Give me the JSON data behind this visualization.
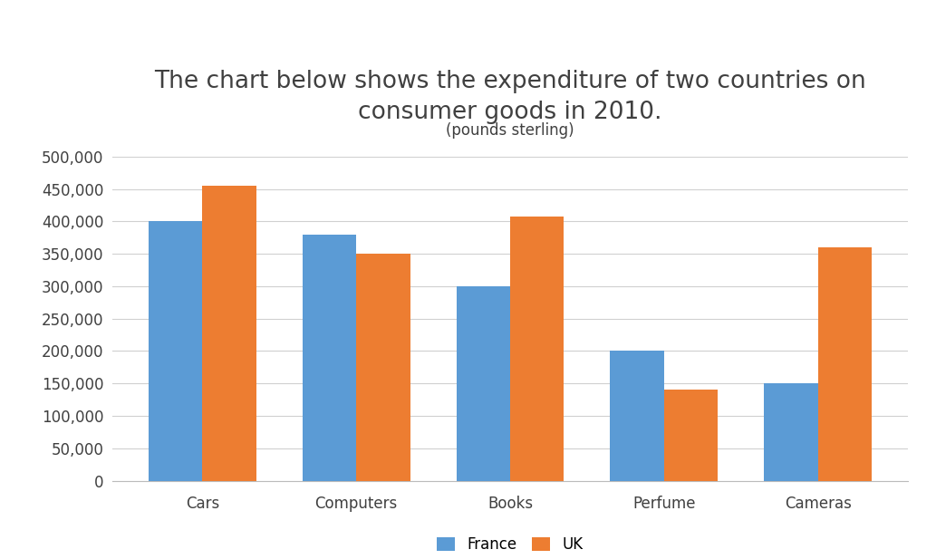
{
  "title_line1": "The chart below shows the expenditure of two countries on",
  "title_line2": "consumer goods in 2010.",
  "subtitle": "(pounds sterling)",
  "categories": [
    "Cars",
    "Computers",
    "Books",
    "Perfume",
    "Cameras"
  ],
  "france_values": [
    400000,
    380000,
    300000,
    200000,
    150000
  ],
  "uk_values": [
    455000,
    350000,
    408000,
    140000,
    360000
  ],
  "france_color": "#5B9BD5",
  "uk_color": "#ED7D31",
  "ylim": [
    0,
    500000
  ],
  "ytick_step": 50000,
  "bar_width": 0.35,
  "legend_labels": [
    "France",
    "UK"
  ],
  "background_color": "#FFFFFF",
  "title_fontsize": 19,
  "subtitle_fontsize": 12,
  "tick_fontsize": 12,
  "legend_fontsize": 12,
  "grid_color": "#D0D0D0",
  "text_color": "#404040"
}
